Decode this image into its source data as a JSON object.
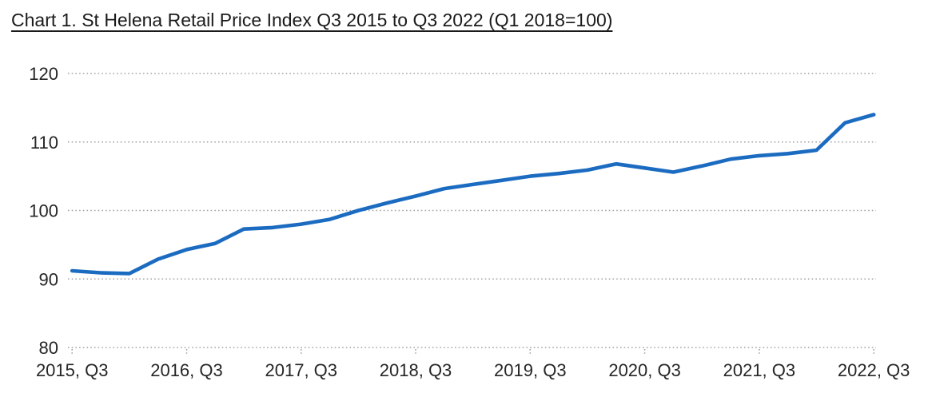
{
  "chart_data": {
    "type": "line",
    "title": "Chart 1. St Helena Retail Price Index Q3 2015 to Q3 2022 (Q1 2018=100)",
    "series_name": "St Helena Retail Price Index",
    "x": [
      "2015 Q3",
      "2015 Q4",
      "2016 Q1",
      "2016 Q2",
      "2016 Q3",
      "2016 Q4",
      "2017 Q1",
      "2017 Q2",
      "2017 Q3",
      "2017 Q4",
      "2018 Q1",
      "2018 Q2",
      "2018 Q3",
      "2018 Q4",
      "2019 Q1",
      "2019 Q2",
      "2019 Q3",
      "2019 Q4",
      "2020 Q1",
      "2020 Q2",
      "2020 Q3",
      "2020 Q4",
      "2021 Q1",
      "2021 Q2",
      "2021 Q3",
      "2021 Q4",
      "2022 Q1",
      "2022 Q2",
      "2022 Q3"
    ],
    "values": [
      91.2,
      90.9,
      90.8,
      92.9,
      94.3,
      95.2,
      97.3,
      97.5,
      98.0,
      98.7,
      100.0,
      101.1,
      102.1,
      103.2,
      103.8,
      104.4,
      105.0,
      105.4,
      105.9,
      106.8,
      106.2,
      105.6,
      106.5,
      107.5,
      108.0,
      108.3,
      108.8,
      112.8,
      114.0
    ],
    "x_tick_labels": [
      "2015, Q3",
      "2016, Q3",
      "2017, Q3",
      "2018, Q3",
      "2019, Q3",
      "2020, Q3",
      "2021, Q3",
      "2022, Q3"
    ],
    "x_tick_positions": [
      0,
      4,
      8,
      12,
      16,
      20,
      24,
      28
    ],
    "y_ticks": [
      "120",
      "110",
      "100",
      "90",
      "80"
    ],
    "y_tick_values": [
      120,
      110,
      100,
      90,
      80
    ],
    "ylim": [
      80,
      120
    ],
    "xlabel": "",
    "ylabel": "",
    "legend": "none",
    "grid": "horizontal dotted",
    "colors": {
      "line": "#1b6bc1",
      "gridline": "#a3a3a3",
      "axis_text": "#262626",
      "title_text": "#1a1a1a",
      "background": "#ffffff"
    }
  }
}
